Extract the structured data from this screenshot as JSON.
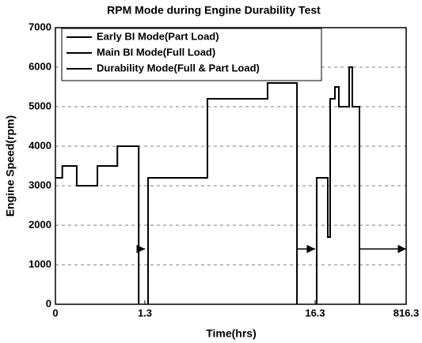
{
  "chart_data": {
    "type": "line",
    "title": "RPM Mode during Engine Durability Test",
    "x_label": "Time(hrs)",
    "y_label": "Engine Speed(rpm)",
    "xlim": [
      0,
      816.3
    ],
    "xticks": [
      0,
      1.3,
      16.3,
      816.3
    ],
    "ylim": [
      0,
      7000
    ],
    "yticks": [
      0,
      1000,
      2000,
      3000,
      4000,
      5000,
      6000,
      7000
    ],
    "grid": true,
    "legend": "upper left",
    "series": [
      {
        "name": "Early BI Mode(Part Load)",
        "color": "#000000",
        "x": [
          0,
          0.1,
          0.1,
          0.31,
          0.31,
          0.61,
          0.61,
          0.9,
          0.9,
          1.21,
          1.21
        ],
        "values": [
          3200,
          3200,
          3500,
          3500,
          3000,
          3000,
          3500,
          3500,
          4000,
          4000,
          0
        ]
      },
      {
        "name": "Main BI Mode(Full Load)",
        "color": "#000000",
        "x": [
          1.58,
          1.58,
          6.81,
          6.81,
          12.11,
          12.11,
          14.7,
          14.7
        ],
        "values": [
          0,
          3200,
          3200,
          5200,
          5200,
          5600,
          5600,
          0
        ]
      },
      {
        "name": "Durability Mode(Full & Part Load)",
        "color": "#000000",
        "x": [
          30.2,
          30.2,
          127.6,
          127.6,
          148.5,
          148.5,
          190.2,
          190.2,
          225,
          225,
          315.4,
          315.4,
          343.2,
          343.2,
          405.9,
          405.9
        ],
        "values": [
          0,
          3200,
          3200,
          1700,
          1700,
          5200,
          5200,
          5500,
          5500,
          5000,
          5000,
          6000,
          6000,
          5000,
          5000,
          0
        ]
      }
    ],
    "arrows": [
      {
        "x": [
          1.21,
          1.3
        ],
        "y": 1400
      },
      {
        "x": [
          14.7,
          16.3
        ],
        "y": 1400
      },
      {
        "x": [
          405.9,
          816.3
        ],
        "y": 1400
      }
    ]
  }
}
